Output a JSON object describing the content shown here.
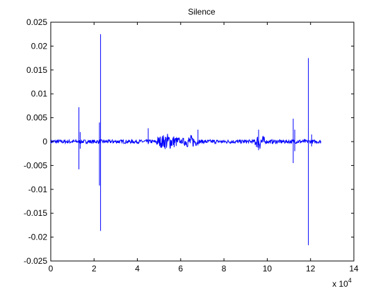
{
  "chart_data": {
    "type": "line",
    "title": "Silence",
    "xlabel": "",
    "ylabel": "",
    "xlim": [
      0,
      14
    ],
    "ylim": [
      -0.025,
      0.025
    ],
    "x_ticks": [
      "0",
      "2",
      "4",
      "6",
      "8",
      "10",
      "12",
      "14"
    ],
    "y_ticks": [
      "0.025",
      "0.02",
      "0.015",
      "0.01",
      "0.005",
      "0",
      "-0.005",
      "-0.01",
      "-0.015",
      "-0.02",
      "-0.025"
    ],
    "x_exponent_label": {
      "base": "x 10",
      "power": "4"
    },
    "grid": false,
    "colors": {
      "series": "#0000ff",
      "axes": "#000000",
      "background": "#ffffff"
    },
    "series": [
      {
        "x_range": [
          0,
          12.5
        ],
        "baseline": 0,
        "noise_amplitude": 0.0004,
        "bursts": [
          {
            "x": 5.4,
            "width": 0.55,
            "amplitude": 0.0012
          },
          {
            "x": 6.45,
            "width": 0.35,
            "amplitude": 0.001
          },
          {
            "x": 9.65,
            "width": 0.25,
            "amplitude": 0.0012
          }
        ],
        "spikes": [
          {
            "x": 1.3,
            "max": 0.0072,
            "min": -0.0058
          },
          {
            "x": 1.36,
            "max": 0.002,
            "min": -0.0015
          },
          {
            "x": 2.3,
            "max": 0.0225,
            "min": -0.0187
          },
          {
            "x": 2.25,
            "max": 0.004,
            "min": -0.0092
          },
          {
            "x": 4.5,
            "max": 0.0028,
            "min": -0.0005
          },
          {
            "x": 6.8,
            "max": 0.0025,
            "min": -0.0008
          },
          {
            "x": 9.6,
            "max": 0.0025,
            "min": -0.0018
          },
          {
            "x": 11.2,
            "max": 0.0048,
            "min": -0.0045
          },
          {
            "x": 11.27,
            "max": 0.0025,
            "min": -0.002
          },
          {
            "x": 11.9,
            "max": 0.0175,
            "min": -0.0217
          },
          {
            "x": 12.05,
            "max": 0.0015,
            "min": -0.001
          }
        ]
      }
    ]
  }
}
